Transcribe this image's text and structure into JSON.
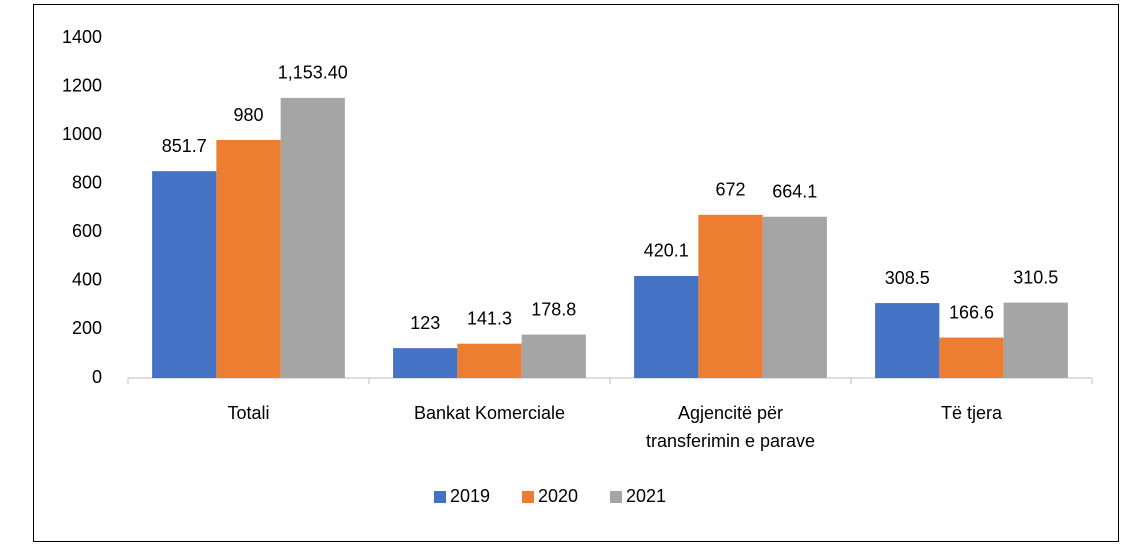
{
  "chart_data": {
    "type": "bar",
    "categories": [
      "Totali",
      "Bankat Komerciale",
      "Agjencitë për transferimin e parave",
      "Të tjera"
    ],
    "series": [
      {
        "name": "2019",
        "color": "#4472c4",
        "values": [
          851.7,
          123,
          420.1,
          308.5
        ]
      },
      {
        "name": "2020",
        "color": "#ed7d31",
        "values": [
          980,
          141.3,
          672,
          166.6
        ]
      },
      {
        "name": "2021",
        "color": "#a5a5a5",
        "values": [
          1153.4,
          178.8,
          664.1,
          310.5
        ],
        "value_labels": [
          "1,153.40",
          "178.8",
          "664.1",
          "310.5"
        ]
      }
    ],
    "ylim": [
      0,
      1400
    ],
    "yticks": [
      0,
      200,
      400,
      600,
      800,
      1000,
      1200,
      1400
    ],
    "grid": false,
    "legend": "bottom"
  }
}
